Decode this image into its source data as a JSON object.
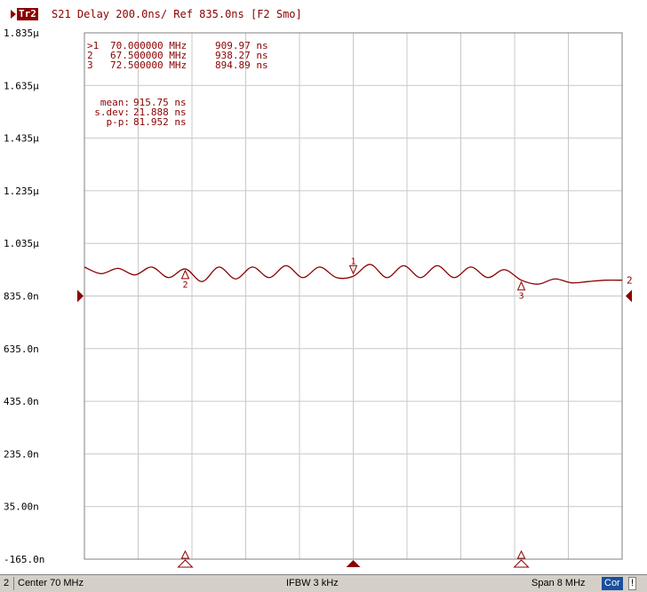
{
  "header": {
    "trace_id": "Tr2",
    "description": "S21 Delay 200.0ns/ Ref 835.0ns [F2 Smo]"
  },
  "markers_table": [
    {
      "label": ">1",
      "freq": "70.000000 MHz",
      "value": "909.97 ns"
    },
    {
      "label": "2",
      "freq": "67.500000 MHz",
      "value": "938.27 ns"
    },
    {
      "label": "3",
      "freq": "72.500000 MHz",
      "value": "894.89 ns"
    }
  ],
  "stats": [
    {
      "label": "mean:",
      "value": "915.75 ns"
    },
    {
      "label": "s.dev:",
      "value": "21.888 ns"
    },
    {
      "label": "p-p:",
      "value": "81.952 ns"
    }
  ],
  "chart_data": {
    "type": "line",
    "x_unit": "MHz",
    "x_range": [
      66,
      74
    ],
    "y_range": [
      -165,
      1835
    ],
    "y_ticks": [
      -165,
      35,
      235,
      435,
      635,
      835,
      1035,
      1235,
      1435,
      1635,
      1835
    ],
    "y_tick_labels": [
      "-165.0n",
      "35.00n",
      "235.0n",
      "435.0n",
      "635.0n",
      "835.0n",
      "1.035µ",
      "1.235µ",
      "1.435µ",
      "1.635µ",
      "1.835µ"
    ],
    "reference_value": 835,
    "reference_label": "835.0n",
    "grid": true,
    "series": [
      {
        "color": "#8b0000",
        "x": [
          66,
          66.25,
          66.5,
          66.75,
          67,
          67.25,
          67.5,
          67.75,
          68,
          68.25,
          68.5,
          68.75,
          69,
          69.25,
          69.5,
          69.75,
          70,
          70.25,
          70.5,
          70.75,
          71,
          71.25,
          71.5,
          71.75,
          72,
          72.25,
          72.5,
          72.75,
          73,
          73.25,
          73.5,
          73.75,
          74
        ],
        "y": [
          945,
          920,
          940,
          915,
          945,
          905,
          938,
          890,
          945,
          900,
          945,
          905,
          950,
          905,
          945,
          905,
          910,
          955,
          905,
          950,
          905,
          950,
          905,
          945,
          905,
          935,
          895,
          880,
          900,
          885,
          890,
          895,
          895
        ]
      }
    ],
    "markers": [
      {
        "id": "1",
        "x": 70.0,
        "y": 909.97,
        "active": true
      },
      {
        "id": "2",
        "x": 67.5,
        "y": 938.27,
        "active": false
      },
      {
        "id": "3",
        "x": 72.5,
        "y": 894.89,
        "active": false
      }
    ],
    "bottom_markers": [
      {
        "x": 67.5,
        "filled": false
      },
      {
        "x": 70.0,
        "filled": true
      },
      {
        "x": 72.5,
        "filled": false
      }
    ],
    "end_label": "2"
  },
  "status": {
    "channel": "2",
    "center": "Center 70 MHz",
    "ifbw": "IFBW 3 kHz",
    "span": "Span 8 MHz",
    "cor": "Cor",
    "excl": "!"
  }
}
